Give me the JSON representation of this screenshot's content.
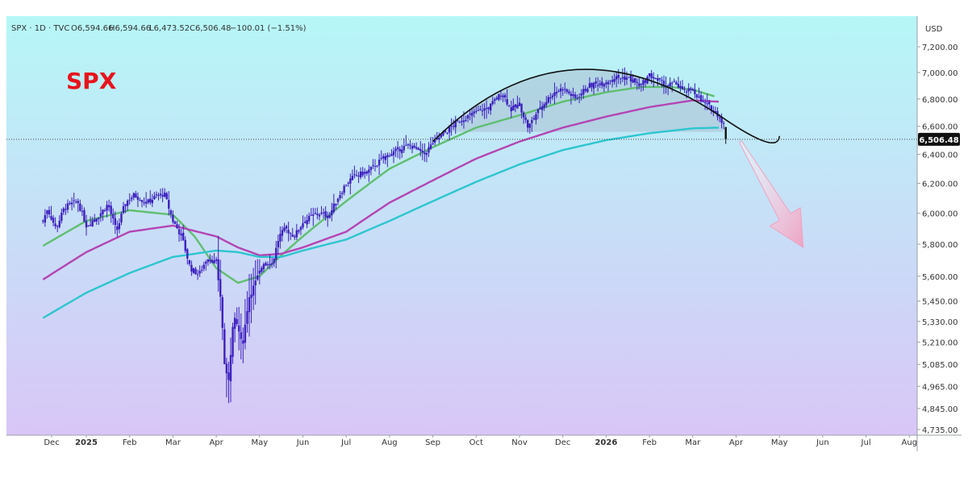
{
  "header": {
    "symbol": "SPX · 1D · TVC",
    "open": "O6,594.66",
    "high": "H6,594.66",
    "low": "L6,473.52",
    "close": "C6,506.48",
    "change": "−100.01 (−1.51%)"
  },
  "watermark": "SPX",
  "currency": "USD",
  "last_price_label": "6,506.48",
  "colors": {
    "bg_top": "#b6f7f7",
    "bg_bottom": "#d9c6f7",
    "candle": "#3d1fbf",
    "ma_fast": "#5fbf6f",
    "ma_mid": "#b444b4",
    "ma_slow": "#2cc6cf",
    "arc": "#111111",
    "arrow": "#f0a0c0",
    "watermark": "#e8141c"
  },
  "chart_data": {
    "type": "candlestick",
    "title": "SPX · 1D · TVC",
    "ylabel": "USD",
    "ylim": [
      4735,
      7300
    ],
    "scale": "log",
    "y_ticks": [
      {
        "value": 7200,
        "label": "7,200.00"
      },
      {
        "value": 7000,
        "label": "7,000.00"
      },
      {
        "value": 6800,
        "label": "6,800.00"
      },
      {
        "value": 6600,
        "label": "6,600.00"
      },
      {
        "value": 6400,
        "label": "6,400.00"
      },
      {
        "value": 6200,
        "label": "6,200.00"
      },
      {
        "value": 6000,
        "label": "6,000.00"
      },
      {
        "value": 5800,
        "label": "5,800.00"
      },
      {
        "value": 5600,
        "label": "5,600.00"
      },
      {
        "value": 5450,
        "label": "5,450.00"
      },
      {
        "value": 5330,
        "label": "5,330.00"
      },
      {
        "value": 5210,
        "label": "5,210.00"
      },
      {
        "value": 5085,
        "label": "5,085.00"
      },
      {
        "value": 4965,
        "label": "4,965.00"
      },
      {
        "value": 4845,
        "label": "4,845.00"
      },
      {
        "value": 4735,
        "label": "4,735.00"
      }
    ],
    "x_ticks": [
      "Dec",
      "2025",
      "Feb",
      "Mar",
      "Apr",
      "May",
      "Jun",
      "Jul",
      "Aug",
      "Sep",
      "Oct",
      "Nov",
      "Dec",
      "2026",
      "Feb",
      "Mar",
      "Apr",
      "May",
      "Jun",
      "Jul",
      "Aug"
    ],
    "x_ticks_bold": [
      "2025",
      "2026"
    ],
    "x_months": [
      -0.8,
      0,
      1,
      2,
      3,
      4,
      5,
      6,
      7,
      8,
      9,
      10,
      11,
      12,
      13,
      14,
      15,
      16,
      17,
      18,
      19
    ],
    "last_price": 6506.48,
    "price_path": [
      [
        -1.0,
        5950
      ],
      [
        -0.9,
        6030
      ],
      [
        -0.7,
        5900
      ],
      [
        -0.5,
        6040
      ],
      [
        -0.2,
        6080
      ],
      [
        0.0,
        5920
      ],
      [
        0.3,
        5990
      ],
      [
        0.5,
        6060
      ],
      [
        0.7,
        5880
      ],
      [
        0.9,
        6070
      ],
      [
        1.1,
        6120
      ],
      [
        1.4,
        6070
      ],
      [
        1.6,
        6110
      ],
      [
        1.8,
        6130
      ],
      [
        2.0,
        5950
      ],
      [
        2.2,
        5850
      ],
      [
        2.4,
        5650
      ],
      [
        2.6,
        5610
      ],
      [
        2.8,
        5720
      ],
      [
        3.0,
        5680
      ],
      [
        3.1,
        5470
      ],
      [
        3.2,
        5050
      ],
      [
        3.28,
        4990
      ],
      [
        3.4,
        5350
      ],
      [
        3.5,
        5300
      ],
      [
        3.6,
        5180
      ],
      [
        3.75,
        5470
      ],
      [
        3.9,
        5560
      ],
      [
        4.1,
        5690
      ],
      [
        4.3,
        5680
      ],
      [
        4.45,
        5850
      ],
      [
        4.6,
        5900
      ],
      [
        4.8,
        5850
      ],
      [
        5.0,
        5940
      ],
      [
        5.2,
        5980
      ],
      [
        5.4,
        6000
      ],
      [
        5.6,
        5980
      ],
      [
        5.8,
        6100
      ],
      [
        6.0,
        6200
      ],
      [
        6.2,
        6250
      ],
      [
        6.5,
        6280
      ],
      [
        6.8,
        6360
      ],
      [
        7.0,
        6400
      ],
      [
        7.3,
        6450
      ],
      [
        7.5,
        6460
      ],
      [
        7.8,
        6400
      ],
      [
        8.0,
        6480
      ],
      [
        8.3,
        6560
      ],
      [
        8.6,
        6640
      ],
      [
        9.0,
        6700
      ],
      [
        9.3,
        6740
      ],
      [
        9.6,
        6850
      ],
      [
        9.8,
        6720
      ],
      [
        10.0,
        6760
      ],
      [
        10.2,
        6590
      ],
      [
        10.4,
        6700
      ],
      [
        10.6,
        6780
      ],
      [
        10.8,
        6850
      ],
      [
        11.0,
        6880
      ],
      [
        11.3,
        6800
      ],
      [
        11.6,
        6900
      ],
      [
        11.9,
        6920
      ],
      [
        12.2,
        6960
      ],
      [
        12.5,
        6960
      ],
      [
        12.8,
        6900
      ],
      [
        13.0,
        6980
      ],
      [
        13.2,
        6940
      ],
      [
        13.4,
        6900
      ],
      [
        13.6,
        6920
      ],
      [
        13.8,
        6850
      ],
      [
        14.0,
        6870
      ],
      [
        14.2,
        6780
      ],
      [
        14.4,
        6740
      ],
      [
        14.6,
        6680
      ],
      [
        14.75,
        6594.66
      ],
      [
        14.8,
        6506.48
      ]
    ],
    "series": [
      {
        "name": "MA fast",
        "color": "#5fbf6f",
        "values": [
          [
            -1.0,
            5790
          ],
          [
            0.0,
            5950
          ],
          [
            1.0,
            6020
          ],
          [
            2.0,
            5990
          ],
          [
            2.5,
            5850
          ],
          [
            3.0,
            5650
          ],
          [
            3.5,
            5560
          ],
          [
            4.0,
            5600
          ],
          [
            4.5,
            5730
          ],
          [
            5.0,
            5850
          ],
          [
            6.0,
            6080
          ],
          [
            7.0,
            6300
          ],
          [
            8.0,
            6450
          ],
          [
            9.0,
            6590
          ],
          [
            10.0,
            6680
          ],
          [
            11.0,
            6780
          ],
          [
            12.0,
            6850
          ],
          [
            12.8,
            6890
          ],
          [
            13.5,
            6890
          ],
          [
            14.0,
            6870
          ],
          [
            14.5,
            6820
          ]
        ]
      },
      {
        "name": "MA mid",
        "color": "#b444b4",
        "values": [
          [
            -1.0,
            5580
          ],
          [
            0.0,
            5750
          ],
          [
            1.0,
            5880
          ],
          [
            2.0,
            5920
          ],
          [
            3.0,
            5850
          ],
          [
            3.5,
            5780
          ],
          [
            4.0,
            5730
          ],
          [
            4.5,
            5740
          ],
          [
            5.0,
            5780
          ],
          [
            6.0,
            5880
          ],
          [
            7.0,
            6070
          ],
          [
            8.0,
            6220
          ],
          [
            9.0,
            6370
          ],
          [
            10.0,
            6490
          ],
          [
            11.0,
            6590
          ],
          [
            12.0,
            6670
          ],
          [
            13.0,
            6740
          ],
          [
            14.0,
            6790
          ],
          [
            14.6,
            6780
          ]
        ]
      },
      {
        "name": "MA slow",
        "color": "#2cc6cf",
        "values": [
          [
            -1.0,
            5350
          ],
          [
            0.0,
            5500
          ],
          [
            1.0,
            5620
          ],
          [
            2.0,
            5720
          ],
          [
            3.0,
            5760
          ],
          [
            3.5,
            5750
          ],
          [
            4.0,
            5720
          ],
          [
            4.5,
            5720
          ],
          [
            5.0,
            5760
          ],
          [
            6.0,
            5830
          ],
          [
            7.0,
            5950
          ],
          [
            8.0,
            6080
          ],
          [
            9.0,
            6210
          ],
          [
            10.0,
            6330
          ],
          [
            11.0,
            6430
          ],
          [
            12.0,
            6500
          ],
          [
            13.0,
            6550
          ],
          [
            14.0,
            6585
          ],
          [
            14.6,
            6590
          ]
        ]
      }
    ],
    "annotations": {
      "dome_arc": {
        "from": [
          8.0,
          6490
        ],
        "peak": [
          11.2,
          7020
        ],
        "to": [
          14.7,
          6660
        ],
        "end": [
          16.0,
          6530
        ]
      },
      "shaded_region_floor": 6560,
      "arrow": {
        "from": [
          15.1,
          6490
        ],
        "to": [
          16.55,
          5780
        ]
      }
    }
  }
}
